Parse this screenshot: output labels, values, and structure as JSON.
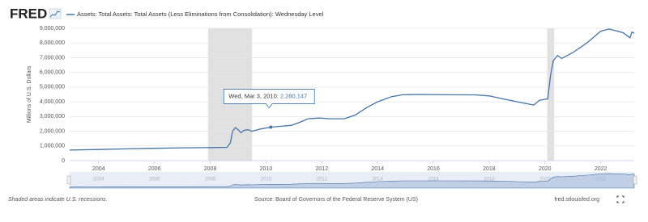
{
  "chart_data": {
    "type": "line",
    "logo": "FRED",
    "title": "Assets: Total Assets: Total Assets (Less Eliminations from Consolidation): Wednesday Level",
    "y_label": "Millions of U.S. Dollars",
    "footnote": "Shaded areas indicate U.S. recessions.",
    "source": "Source: Board of Governors of the Federal Reserve System (US)",
    "site": "fred.stlouisfed.org",
    "xlim": [
      2002.96,
      2023.2
    ],
    "xticks": [
      2004,
      2006,
      2008,
      2010,
      2012,
      2014,
      2016,
      2018,
      2020,
      2022
    ],
    "ylim": [
      0,
      9000000
    ],
    "yticks": [
      0,
      {
        "value": 1000000,
        "label": "1,000,000"
      },
      {
        "value": 2000000,
        "label": "2,000,000"
      },
      {
        "value": 3000000,
        "label": "3,000,000"
      },
      {
        "value": 4000000,
        "label": "4,000,000"
      },
      {
        "value": 5000000,
        "label": "5,000,000"
      },
      {
        "value": 6000000,
        "label": "6,000,000"
      },
      {
        "value": 7000000,
        "label": "7,000,000"
      },
      {
        "value": 8000000,
        "label": "8,000,000"
      },
      {
        "value": 9000000,
        "label": "9,000,000"
      }
    ],
    "grid": true,
    "recessions": [
      [
        2007.92,
        2009.5
      ],
      [
        2020.08,
        2020.33
      ]
    ],
    "series": [
      {
        "name": "Assets: Total Assets: Total Assets (Less Eliminations from Consolidation): Wednesday Level",
        "color": "#4572a7",
        "x": [
          2002.96,
          2004,
          2005,
          2006,
          2007,
          2008,
          2008.6,
          2008.72,
          2008.8,
          2008.9,
          2009.0,
          2009.1,
          2009.2,
          2009.35,
          2009.5,
          2009.8,
          2010.17,
          2010.5,
          2010.9,
          2011.2,
          2011.5,
          2011.9,
          2012.3,
          2012.8,
          2013.2,
          2013.6,
          2014.0,
          2014.5,
          2014.9,
          2015.5,
          2016.5,
          2017.5,
          2018.0,
          2018.5,
          2019.0,
          2019.6,
          2019.8,
          2020.0,
          2020.1,
          2020.2,
          2020.3,
          2020.45,
          2020.6,
          2021.0,
          2021.5,
          2022.0,
          2022.3,
          2022.8,
          2023.05,
          2023.12,
          2023.2
        ],
        "values": [
          720000,
          760000,
          800000,
          840000,
          870000,
          890000,
          905000,
          1200000,
          2000000,
          2250000,
          2100000,
          1900000,
          2050000,
          2100000,
          2000000,
          2150000,
          2280147,
          2330000,
          2400000,
          2600000,
          2850000,
          2900000,
          2850000,
          2850000,
          3100000,
          3600000,
          4000000,
          4350000,
          4480000,
          4500000,
          4480000,
          4470000,
          4400000,
          4200000,
          4000000,
          3780000,
          4100000,
          4170000,
          4200000,
          5800000,
          6800000,
          7150000,
          6950000,
          7350000,
          8000000,
          8800000,
          8950000,
          8700000,
          8350000,
          8750000,
          8650000
        ]
      }
    ],
    "tooltip": {
      "label": "Wed, Mar 3, 2010:",
      "x": 2010.17,
      "value": 2280147,
      "value_label": "2,280,147"
    }
  }
}
